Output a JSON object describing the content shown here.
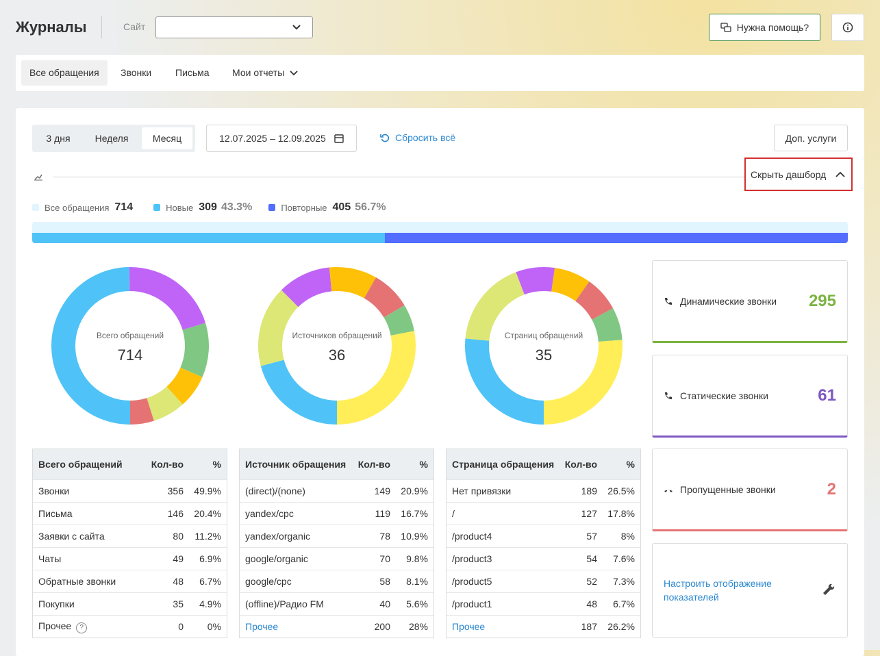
{
  "header": {
    "title": "Журналы",
    "site_label": "Сайт",
    "help": "Нужна помощь?"
  },
  "tabs": [
    "Все обращения",
    "Звонки",
    "Письма",
    "Мои отчеты"
  ],
  "periods": [
    "3 дня",
    "Неделя",
    "Месяц"
  ],
  "date_range": "12.07.2025 – 12.09.2025",
  "reset": "Сбросить всё",
  "extra": "Доп. услуги",
  "hide": "Скрыть дашборд",
  "summary": {
    "total": {
      "label": "Все обращения",
      "value": 714,
      "color": "#e1f5fe"
    },
    "new": {
      "label": "Новые",
      "value": 309,
      "percent": "43.3%",
      "color": "#4fc3f7"
    },
    "repeat": {
      "label": "Повторные",
      "value": 405,
      "percent": "56.7%",
      "color": "#536dfe"
    }
  },
  "donuts": [
    {
      "label": "Всего обращений",
      "value": 714,
      "colors": [
        "#4fc3f7",
        "#c064f7",
        "#81c784",
        "#ffc107",
        "#dce775",
        "#e57373",
        "#ffee58"
      ]
    },
    {
      "label": "Источников обращений",
      "value": 36,
      "colors": [
        "#4fc3f7",
        "#dce775",
        "#c064f7",
        "#ffc107",
        "#e57373",
        "#81c784",
        "#ffee58"
      ]
    },
    {
      "label": "Страниц обращений",
      "value": 35,
      "colors": [
        "#4fc3f7",
        "#dce775",
        "#c064f7",
        "#ffc107",
        "#e57373",
        "#81c784",
        "#ffee58"
      ]
    }
  ],
  "tables": [
    {
      "headers": [
        "Всего обращений",
        "Кол-во",
        "%"
      ],
      "rows": [
        [
          "Звонки",
          356,
          "49.9%"
        ],
        [
          "Письма",
          146,
          "20.4%"
        ],
        [
          "Заявки с сайта",
          80,
          "11.2%"
        ],
        [
          "Чаты",
          49,
          "6.9%"
        ],
        [
          "Обратные звонки",
          48,
          "6.7%"
        ],
        [
          "Покупки",
          35,
          "4.9%"
        ],
        [
          "Прочее",
          0,
          "0%"
        ]
      ]
    },
    {
      "headers": [
        "Источник обращения",
        "Кол-во",
        "%"
      ],
      "rows": [
        [
          "(direct)/(none)",
          149,
          "20.9%"
        ],
        [
          "yandex/cpc",
          119,
          "16.7%"
        ],
        [
          "yandex/organic",
          78,
          "10.9%"
        ],
        [
          "google/organic",
          70,
          "9.8%"
        ],
        [
          "google/cpc",
          58,
          "8.1%"
        ],
        [
          "(offline)/Радио FM",
          40,
          "5.6%"
        ],
        [
          "Прочее",
          200,
          "28%"
        ]
      ]
    },
    {
      "headers": [
        "Страница обращения",
        "Кол-во",
        "%"
      ],
      "rows": [
        [
          "Нет привязки",
          189,
          "26.5%"
        ],
        [
          "/",
          127,
          "17.8%"
        ],
        [
          "/product4",
          57,
          "8%"
        ],
        [
          "/product3",
          54,
          "7.6%"
        ],
        [
          "/product5",
          52,
          "7.3%"
        ],
        [
          "/product1",
          48,
          "6.7%"
        ],
        [
          "Прочее",
          187,
          "26.2%"
        ]
      ]
    }
  ],
  "cards": [
    {
      "label": "Динамические звонки",
      "value": 295,
      "color": "#7cb342"
    },
    {
      "label": "Статические звонки",
      "value": 61,
      "color": "#7e57c2"
    },
    {
      "label": "Пропущенные звонки",
      "value": 2,
      "color": "#e57373"
    }
  ],
  "settings": "Настроить отображение показателей"
}
